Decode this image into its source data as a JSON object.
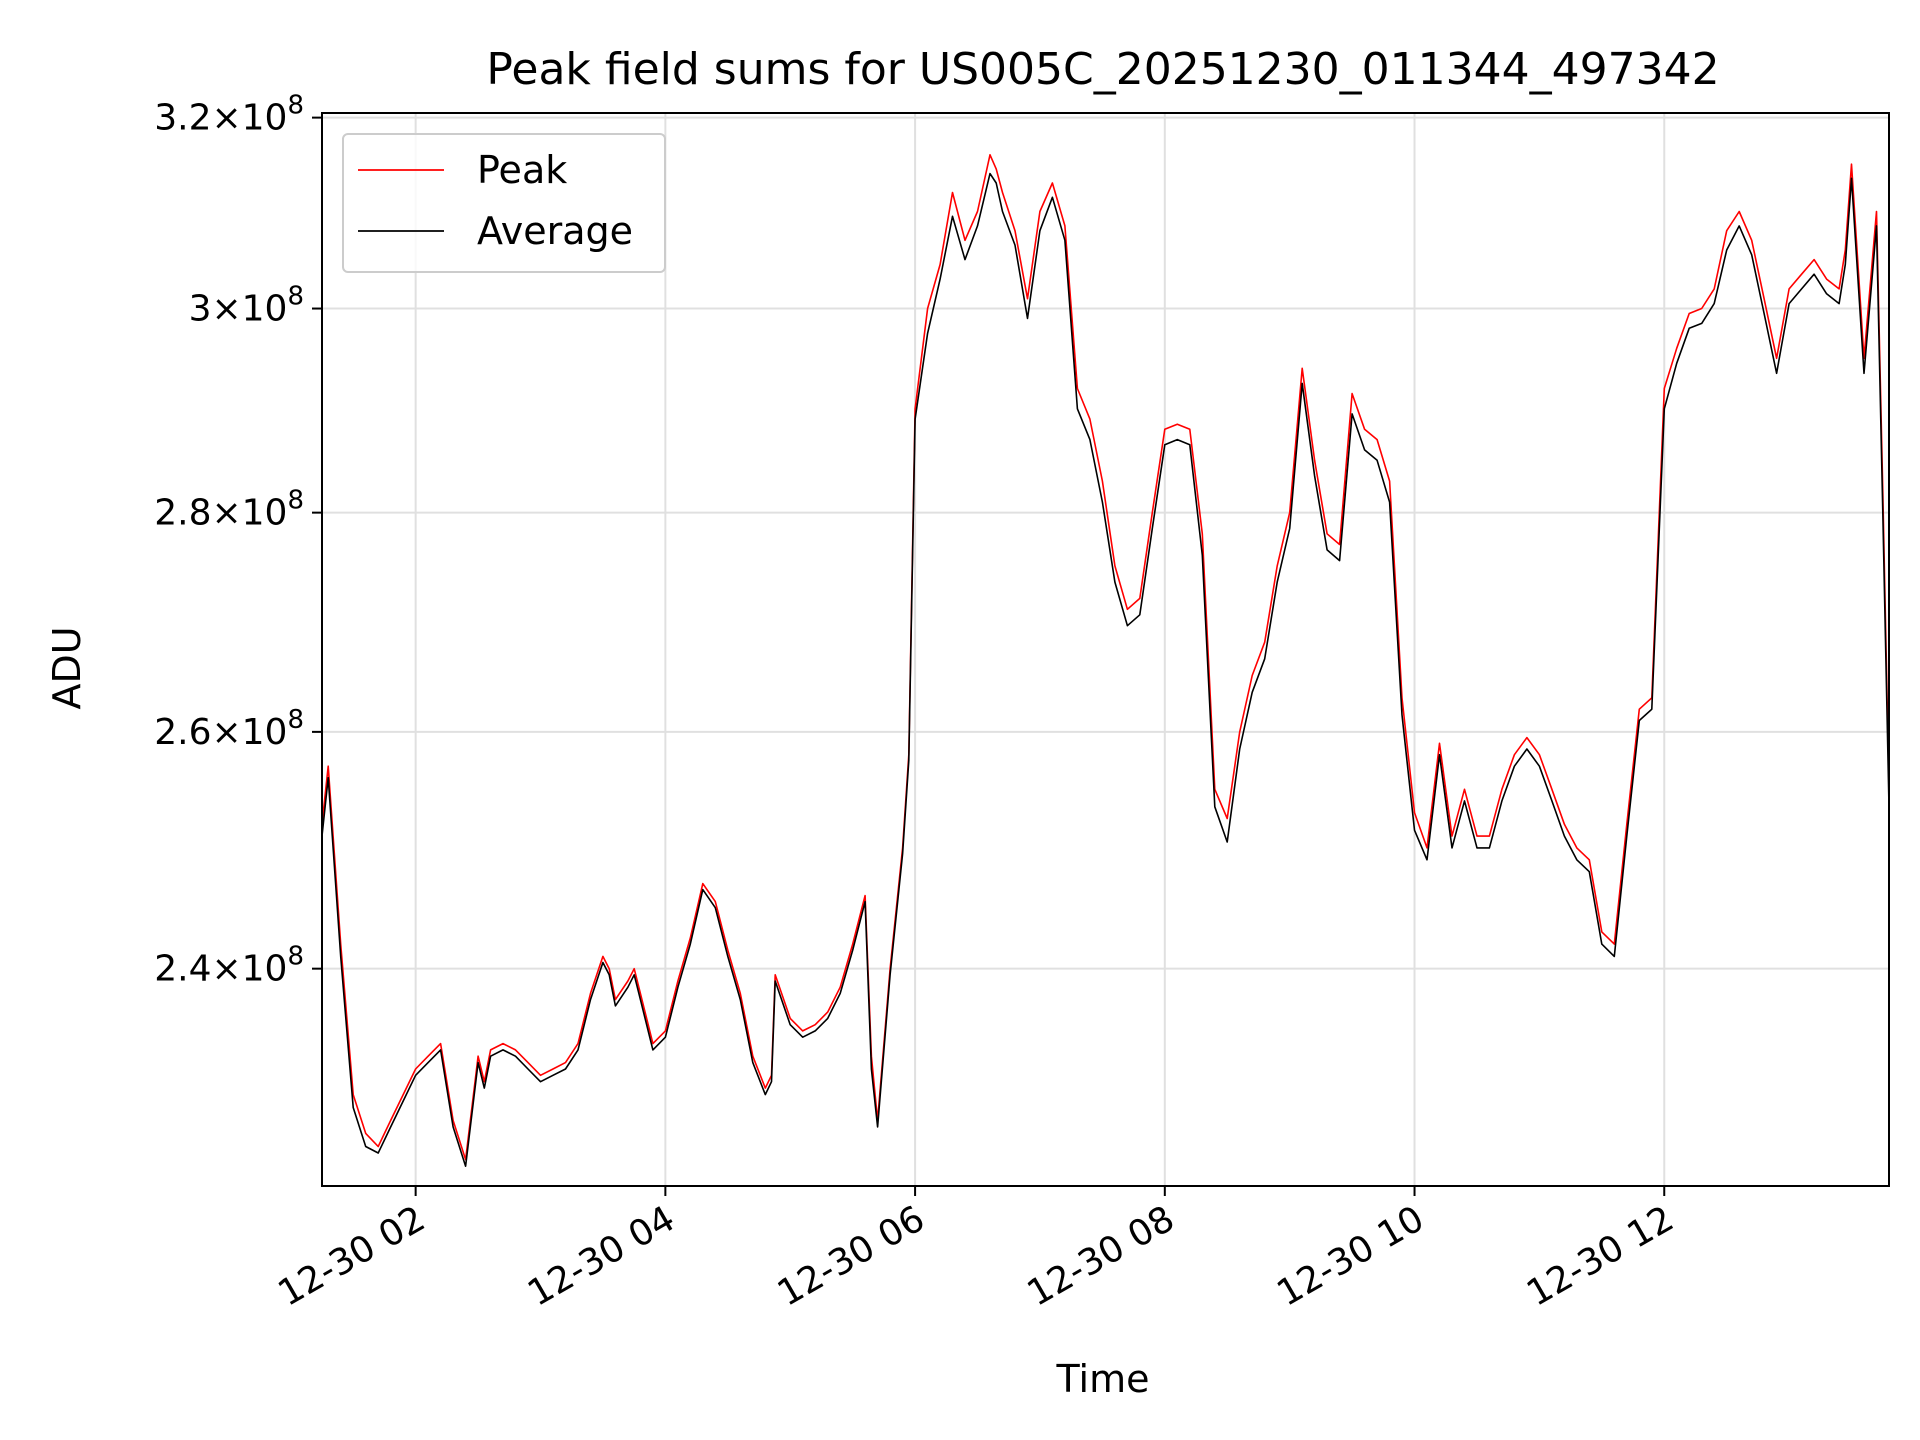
{
  "chart_data": {
    "type": "line",
    "title": "Peak field sums for US005C_20251230_011344_497342",
    "xlabel": "Time",
    "ylabel": "ADU",
    "y_scale": "log",
    "x_unit": "hours on 2025-12-30",
    "xlim": [
      1.25,
      13.8
    ],
    "ylim": [
      223000000.0,
      320500000.0
    ],
    "grid": true,
    "legend_position": "top-left",
    "x_tick_labels": [
      "12-30 02",
      "12-30 04",
      "12-30 06",
      "12-30 08",
      "12-30 10",
      "12-30 12"
    ],
    "x_tick_values": [
      2,
      4,
      6,
      8,
      10,
      12
    ],
    "y_ticks": [
      {
        "value": 240000000.0,
        "label_mantissa": "2.4",
        "label_exp": "8"
      },
      {
        "value": 260000000.0,
        "label_mantissa": "2.6",
        "label_exp": "8"
      },
      {
        "value": 280000000.0,
        "label_mantissa": "2.8",
        "label_exp": "8"
      },
      {
        "value": 300000000.0,
        "label_mantissa": "3",
        "label_exp": "8"
      },
      {
        "value": 320000000.0,
        "label_mantissa": "3.2",
        "label_exp": "8"
      }
    ],
    "x": [
      1.25,
      1.3,
      1.4,
      1.5,
      1.6,
      1.7,
      1.8,
      1.9,
      2.0,
      2.1,
      2.2,
      2.3,
      2.4,
      2.5,
      2.55,
      2.6,
      2.7,
      2.8,
      2.9,
      3.0,
      3.1,
      3.2,
      3.3,
      3.4,
      3.5,
      3.55,
      3.6,
      3.7,
      3.75,
      3.8,
      3.9,
      4.0,
      4.1,
      4.2,
      4.3,
      4.4,
      4.5,
      4.6,
      4.7,
      4.8,
      4.85,
      4.88,
      5.0,
      5.1,
      5.2,
      5.3,
      5.4,
      5.5,
      5.6,
      5.65,
      5.7,
      5.8,
      5.9,
      5.95,
      6.0,
      6.1,
      6.2,
      6.3,
      6.4,
      6.5,
      6.6,
      6.65,
      6.7,
      6.8,
      6.9,
      7.0,
      7.1,
      7.2,
      7.3,
      7.4,
      7.5,
      7.6,
      7.7,
      7.8,
      7.9,
      8.0,
      8.1,
      8.2,
      8.3,
      8.4,
      8.5,
      8.6,
      8.7,
      8.8,
      8.9,
      9.0,
      9.1,
      9.2,
      9.3,
      9.4,
      9.5,
      9.6,
      9.7,
      9.8,
      9.9,
      10.0,
      10.1,
      10.2,
      10.3,
      10.4,
      10.5,
      10.6,
      10.7,
      10.8,
      10.9,
      11.0,
      11.1,
      11.2,
      11.3,
      11.4,
      11.5,
      11.6,
      11.7,
      11.8,
      11.9,
      12.0,
      12.1,
      12.2,
      12.3,
      12.4,
      12.5,
      12.6,
      12.7,
      12.8,
      12.9,
      13.0,
      13.1,
      13.2,
      13.3,
      13.4,
      13.45,
      13.5,
      13.6,
      13.7,
      13.75,
      13.8
    ],
    "series": [
      {
        "name": "Peak",
        "color": "#ff0000",
        "values": [
          252000000.0,
          257000000.0,
          242000000.0,
          230000000.0,
          227000000.0,
          226000000.0,
          228000000.0,
          230000000.0,
          232000000.0,
          233000000.0,
          234000000.0,
          228000000.0,
          225000000.0,
          233000000.0,
          231000000.0,
          233500000.0,
          234000000.0,
          233500000.0,
          232500000.0,
          231500000.0,
          232000000.0,
          232500000.0,
          234000000.0,
          238000000.0,
          241000000.0,
          240000000.0,
          237500000.0,
          239000000.0,
          240000000.0,
          238000000.0,
          234000000.0,
          235000000.0,
          239000000.0,
          242500000.0,
          247000000.0,
          245500000.0,
          241500000.0,
          238000000.0,
          233000000.0,
          230500000.0,
          231500000.0,
          239500000.0,
          236000000.0,
          235000000.0,
          235500000.0,
          236500000.0,
          238500000.0,
          242000000.0,
          246000000.0,
          233000000.0,
          228000000.0,
          240000000.0,
          250000000.0,
          258000000.0,
          290000000.0,
          300000000.0,
          304500000.0,
          312000000.0,
          307000000.0,
          310000000.0,
          316000000.0,
          314500000.0,
          312000000.0,
          308000000.0,
          301000000.0,
          310000000.0,
          313000000.0,
          308500000.0,
          292000000.0,
          289000000.0,
          283000000.0,
          275000000.0,
          271000000.0,
          272000000.0,
          280000000.0,
          288000000.0,
          288500000.0,
          288000000.0,
          278000000.0,
          255000000.0,
          252500000.0,
          260000000.0,
          265000000.0,
          268000000.0,
          275000000.0,
          280000000.0,
          294000000.0,
          285000000.0,
          278000000.0,
          277000000.0,
          291500000.0,
          288000000.0,
          287000000.0,
          283000000.0,
          263000000.0,
          253000000.0,
          250000000.0,
          259000000.0,
          251000000.0,
          255000000.0,
          251000000.0,
          251000000.0,
          255000000.0,
          258000000.0,
          259500000.0,
          258000000.0,
          255000000.0,
          252000000.0,
          250000000.0,
          249000000.0,
          243000000.0,
          242000000.0,
          252000000.0,
          262000000.0,
          263000000.0,
          292000000.0,
          296000000.0,
          299500000.0,
          300000000.0,
          302000000.0,
          308000000.0,
          310000000.0,
          307000000.0,
          301000000.0,
          295000000.0,
          302000000.0,
          303500000.0,
          305000000.0,
          303000000.0,
          302000000.0,
          306000000.0,
          315000000.0,
          295000000.0,
          310000000.0,
          282000000.0,
          255000000.0
        ]
      },
      {
        "name": "Average",
        "color": "#000000",
        "values": [
          251000000.0,
          256000000.0,
          241000000.0,
          229000000.0,
          226000000.0,
          225500000.0,
          227500000.0,
          229500000.0,
          231500000.0,
          232500000.0,
          233500000.0,
          227500000.0,
          224500000.0,
          232500000.0,
          230500000.0,
          233000000.0,
          233500000.0,
          233000000.0,
          232000000.0,
          231000000.0,
          231500000.0,
          232000000.0,
          233500000.0,
          237500000.0,
          240500000.0,
          239500000.0,
          237000000.0,
          238500000.0,
          239500000.0,
          237500000.0,
          233500000.0,
          234500000.0,
          238500000.0,
          242000000.0,
          246500000.0,
          245000000.0,
          241000000.0,
          237500000.0,
          232500000.0,
          230000000.0,
          231000000.0,
          239000000.0,
          235500000.0,
          234500000.0,
          235000000.0,
          236000000.0,
          238000000.0,
          241500000.0,
          245500000.0,
          232000000.0,
          227500000.0,
          239500000.0,
          249500000.0,
          257500000.0,
          289000000.0,
          297500000.0,
          303000000.0,
          309500000.0,
          305000000.0,
          308500000.0,
          314000000.0,
          313000000.0,
          310000000.0,
          306500000.0,
          299000000.0,
          308000000.0,
          311500000.0,
          307000000.0,
          290000000.0,
          287000000.0,
          281000000.0,
          273500000.0,
          269500000.0,
          270500000.0,
          278500000.0,
          286500000.0,
          287000000.0,
          286500000.0,
          276000000.0,
          253500000.0,
          250500000.0,
          258500000.0,
          263500000.0,
          266500000.0,
          273500000.0,
          278500000.0,
          292500000.0,
          283500000.0,
          276500000.0,
          275500000.0,
          289500000.0,
          286000000.0,
          285000000.0,
          281000000.0,
          261500000.0,
          251500000.0,
          249000000.0,
          258000000.0,
          250000000.0,
          254000000.0,
          250000000.0,
          250000000.0,
          254000000.0,
          257000000.0,
          258500000.0,
          257000000.0,
          254000000.0,
          251000000.0,
          249000000.0,
          248000000.0,
          242000000.0,
          241000000.0,
          251000000.0,
          261000000.0,
          262000000.0,
          290000000.0,
          294500000.0,
          298000000.0,
          298500000.0,
          300500000.0,
          306000000.0,
          308500000.0,
          305500000.0,
          299500000.0,
          293500000.0,
          300500000.0,
          302000000.0,
          303500000.0,
          301500000.0,
          300500000.0,
          304500000.0,
          313500000.0,
          293500000.0,
          308500000.0,
          280000000.0,
          253500000.0
        ]
      }
    ]
  }
}
